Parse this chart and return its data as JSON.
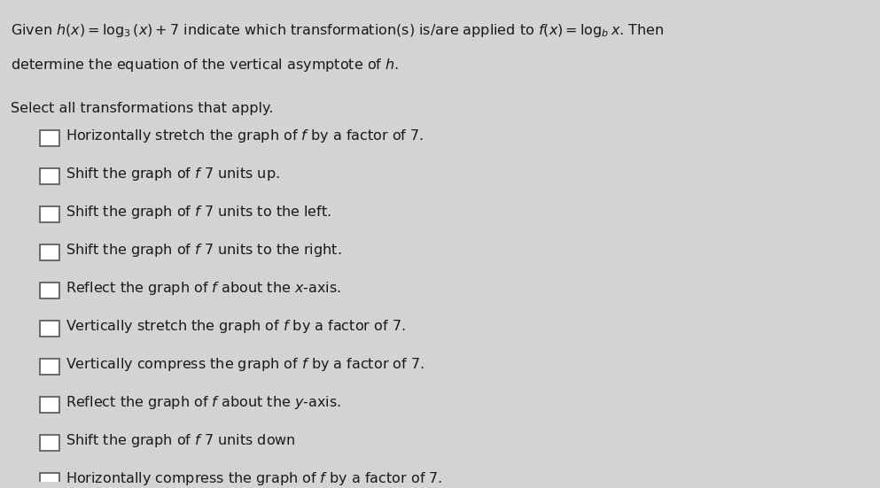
{
  "background_color": "#d3d3d3",
  "title_line1": "Given $h(x) = \\log_3(x) + 7$ indicate which transformation(s) is/are applied to $f(x) = \\log_b x$. Then",
  "title_line2": "determine the equation of the vertical asymptote of $h$.",
  "select_label": "Select all transformations that apply.",
  "options": [
    "Horizontally stretch the graph of $f$ by a factor of 7.",
    "Shift the graph of $f$ 7 units up.",
    "Shift the graph of $f$ 7 units to the left.",
    "Shift the graph of $f$ 7 units to the right.",
    "Reflect the graph of $f$ about the $x$-axis.",
    "Vertically stretch the graph of $f$ by a factor of 7.",
    "Vertically compress the graph of $f$ by a factor of 7.",
    "Reflect the graph of $f$ about the $y$-axis.",
    "Shift the graph of $f$ 7 units down",
    "Horizontally compress the graph of $f$ by a factor of 7."
  ],
  "text_color": "#1a1a1a",
  "checkbox_color": "#ffffff",
  "checkbox_edge_color": "#555555",
  "font_size_title": 11.5,
  "font_size_select": 11.5,
  "font_size_options": 11.5
}
